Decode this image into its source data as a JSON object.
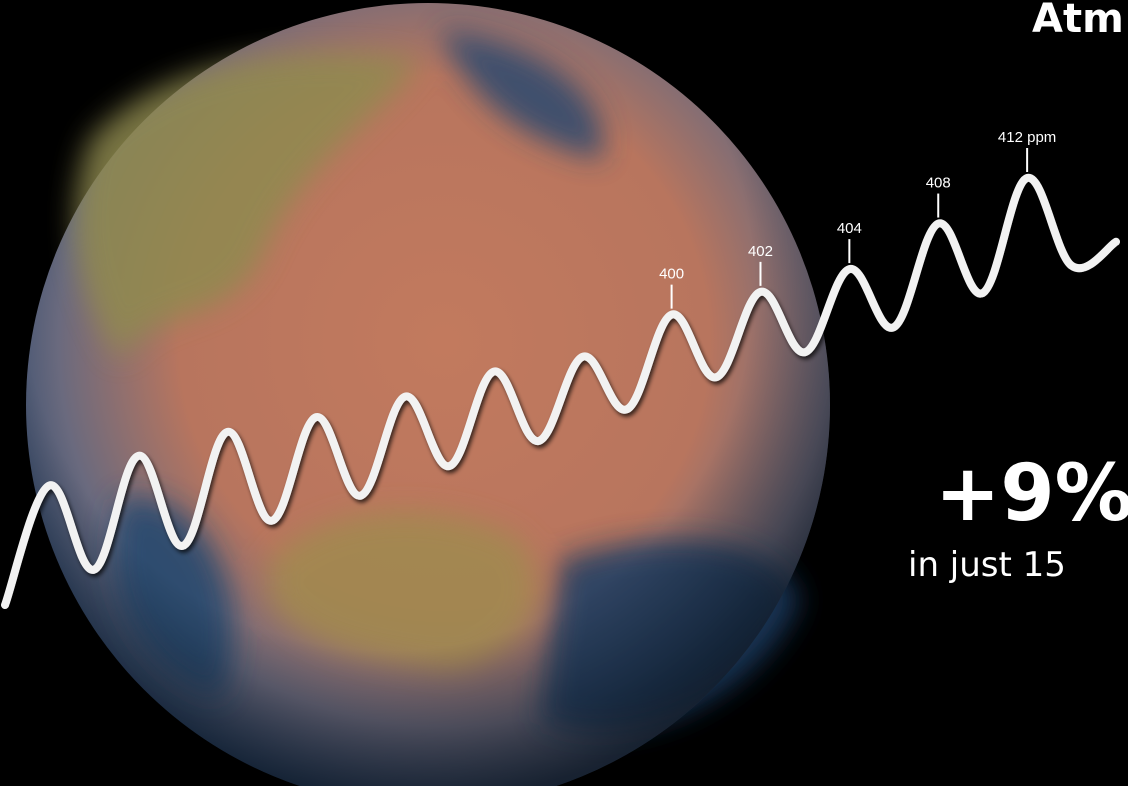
{
  "chart_data": {
    "type": "line",
    "title": "Atm",
    "headline": "+9%",
    "subheadline": "in just 15",
    "color": "#f2f2f2",
    "values": [
      374.5,
      385.0,
      377.6,
      387.6,
      379.7,
      389.7,
      381.9,
      391.0,
      384.1,
      392.8,
      386.7,
      395.0,
      388.9,
      396.3,
      391.7,
      400,
      394.5,
      402,
      396.7,
      404,
      398.9,
      408,
      401.9,
      412,
      404.3,
      406.4
    ],
    "value_labels": [
      null,
      null,
      null,
      null,
      null,
      null,
      null,
      null,
      null,
      null,
      null,
      null,
      null,
      null,
      null,
      "400",
      null,
      "402",
      null,
      "404",
      null,
      "408",
      null,
      "412 ppm",
      null,
      null
    ]
  }
}
